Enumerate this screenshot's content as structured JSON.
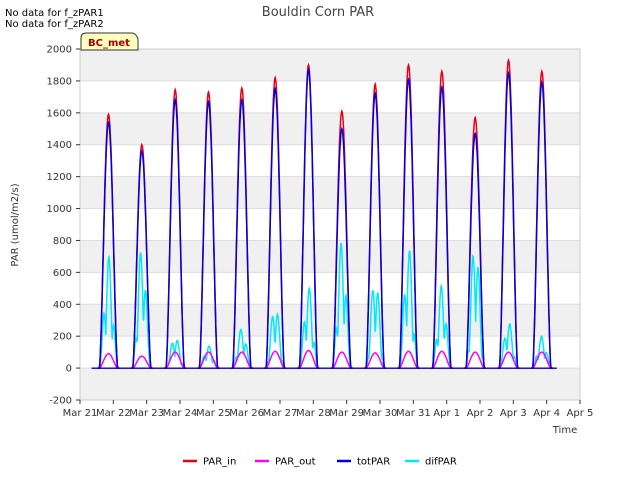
{
  "notes": [
    "No data for f_zPAR1",
    "No data for f_zPAR2"
  ],
  "badge": "BC_met",
  "chart_data": {
    "type": "line",
    "title": "Bouldin Corn PAR",
    "xlabel": "Time",
    "ylabel": "PAR (umol/m2/s)",
    "ylim": [
      -200,
      2000
    ],
    "yticks": [
      -200,
      0,
      200,
      400,
      600,
      800,
      1000,
      1200,
      1400,
      1600,
      1800,
      2000
    ],
    "xlim": [
      0,
      15
    ],
    "xticks": [
      {
        "x": 0,
        "label": "Mar 21"
      },
      {
        "x": 1,
        "label": "Mar 22"
      },
      {
        "x": 2,
        "label": "Mar 23"
      },
      {
        "x": 3,
        "label": "Mar 24"
      },
      {
        "x": 4,
        "label": "Mar 25"
      },
      {
        "x": 5,
        "label": "Mar 26"
      },
      {
        "x": 6,
        "label": "Mar 27"
      },
      {
        "x": 7,
        "label": "Mar 28"
      },
      {
        "x": 8,
        "label": "Mar 29"
      },
      {
        "x": 9,
        "label": "Mar 30"
      },
      {
        "x": 10,
        "label": "Mar 31"
      },
      {
        "x": 11,
        "label": "Apr 1"
      },
      {
        "x": 12,
        "label": "Apr 2"
      },
      {
        "x": 13,
        "label": "Apr 3"
      },
      {
        "x": 14,
        "label": "Apr 4"
      },
      {
        "x": 15,
        "label": "Apr 5"
      }
    ],
    "day_offset": 0.85,
    "daily_peaks": {
      "PAR_in": [
        1590,
        1400,
        1745,
        1730,
        1755,
        1820,
        1900,
        1610,
        1780,
        1900,
        1860,
        1570,
        1930,
        1860
      ],
      "totPAR": [
        1540,
        1360,
        1680,
        1670,
        1680,
        1750,
        1870,
        1500,
        1720,
        1810,
        1760,
        1470,
        1850,
        1790
      ],
      "PAR_out": [
        90,
        75,
        100,
        100,
        100,
        105,
        110,
        100,
        95,
        105,
        105,
        100,
        100,
        100
      ],
      "difPAR": [
        700,
        760,
        200,
        140,
        250,
        400,
        510,
        800,
        580,
        760,
        520,
        810,
        290,
        200
      ]
    },
    "series": [
      {
        "name": "PAR_in",
        "color": "#e8001c"
      },
      {
        "name": "PAR_out",
        "color": "#ff00ff"
      },
      {
        "name": "totPAR",
        "color": "#0000dd"
      },
      {
        "name": "difPAR",
        "color": "#00e8ff"
      }
    ],
    "legend_position": "bottom"
  }
}
